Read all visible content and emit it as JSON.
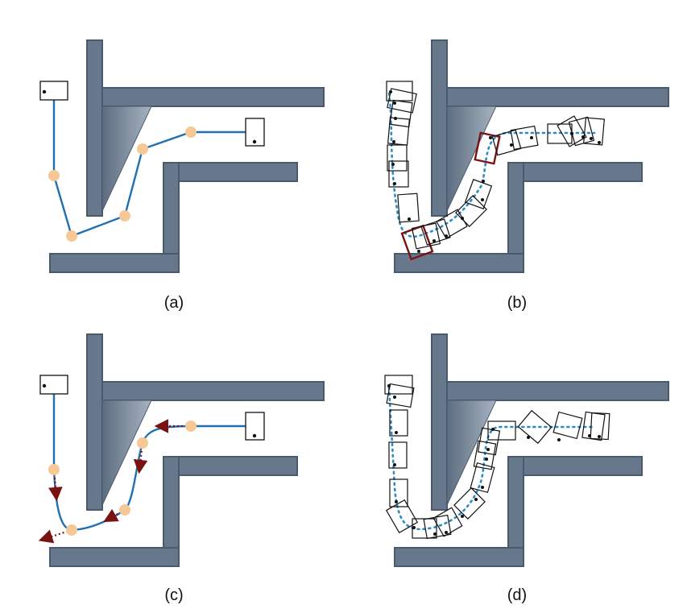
{
  "panels": [
    {
      "id": "a",
      "label": "(a)"
    },
    {
      "id": "b",
      "label": "(b)"
    },
    {
      "id": "c",
      "label": "(c)"
    },
    {
      "id": "d",
      "label": "(d)"
    }
  ],
  "colors": {
    "wall_fill": "#68788c",
    "wall_edge": "#4a5a6e",
    "path_solid": "#1f6fb2",
    "path_dotted": "#2b8cc4",
    "waypoint": "#f6c896",
    "highlight_box": "#7a1212",
    "arrow": "#7a1212",
    "box_stroke": "#111111"
  },
  "icons": [
    "vehicle-box-icon",
    "waypoint-dot-icon",
    "direction-arrow-icon"
  ]
}
